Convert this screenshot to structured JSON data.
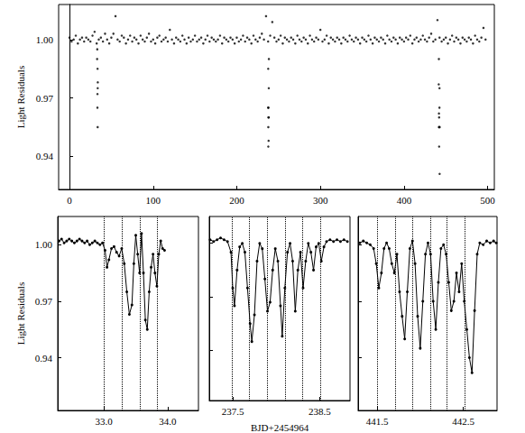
{
  "chart_data": [
    {
      "type": "scatter",
      "color": "#000000",
      "marker": "circle",
      "grid": false,
      "ylabel": "Light Residuals",
      "xlim": [
        -13,
        508
      ],
      "ylim": [
        0.923,
        1.018
      ],
      "xticks": [
        0,
        100,
        200,
        300,
        400,
        500
      ],
      "yticks": [
        0.94,
        0.97,
        {
          "value": 1,
          "label": "1.00"
        }
      ],
      "x": [
        0,
        2.5,
        5,
        7.5,
        10,
        12.5,
        15,
        17.5,
        20,
        22.5,
        25,
        27.5,
        30,
        32.5,
        35,
        37.5,
        40,
        42.5,
        45,
        47.5,
        50,
        52.5,
        55,
        57.5,
        60,
        62.5,
        65,
        67.5,
        70,
        72.5,
        75,
        77.5,
        80,
        82.5,
        85,
        87.5,
        90,
        92.5,
        95,
        97.5,
        100,
        102.5,
        105,
        107.5,
        110,
        112.5,
        115,
        117.5,
        120,
        122.5,
        125,
        127.5,
        130,
        132.5,
        135,
        137.5,
        140,
        142.5,
        145,
        147.5,
        150,
        152.5,
        155,
        157.5,
        160,
        162.5,
        165,
        167.5,
        170,
        172.5,
        175,
        177.5,
        180,
        182.5,
        185,
        187.5,
        190,
        192.5,
        195,
        197.5,
        200,
        202.5,
        205,
        207.5,
        210,
        212.5,
        215,
        217.5,
        220,
        222.5,
        225,
        227.5,
        230,
        232.5,
        235,
        237.5,
        240,
        242.5,
        245,
        247.5,
        250,
        252.5,
        255,
        257.5,
        260,
        262.5,
        265,
        267.5,
        270,
        272.5,
        275,
        277.5,
        280,
        282.5,
        285,
        287.5,
        290,
        292.5,
        295,
        297.5,
        300,
        302.5,
        305,
        307.5,
        310,
        312.5,
        315,
        317.5,
        320,
        322.5,
        325,
        327.5,
        330,
        332.5,
        335,
        337.5,
        340,
        342.5,
        345,
        347.5,
        350,
        352.5,
        355,
        357.5,
        360,
        362.5,
        365,
        367.5,
        370,
        372.5,
        375,
        377.5,
        380,
        382.5,
        385,
        387.5,
        390,
        392.5,
        395,
        397.5,
        400,
        402.5,
        405,
        407.5,
        410,
        412.5,
        415,
        417.5,
        420,
        422.5,
        425,
        427.5,
        430,
        432.5,
        435,
        437.5,
        440,
        442.5,
        445,
        447.5,
        450,
        452.5,
        455,
        457.5,
        460,
        462.5,
        465,
        467.5,
        470,
        472.5,
        475,
        477.5,
        480,
        482.5,
        485,
        487.5,
        490,
        492.5,
        495,
        497.5,
        33.05,
        33.2,
        33.4,
        33.45,
        33.55,
        33.67,
        33.72,
        33.83,
        237.52,
        237.6,
        237.72,
        237.75,
        237.9,
        237.93,
        238.07,
        238.22,
        238.3,
        238.42,
        441.52,
        441.7,
        441.78,
        441.82,
        441.98,
        442.0,
        442.18,
        442.38,
        442.45,
        442.55,
        442.6
      ],
      "values": [
        1.001,
        0.999,
        1.0,
        1.002,
        0.998,
        1.0,
        1.001,
        0.999,
        1.001,
        1.0,
        0.999,
        1.002,
        1.004,
        0.998,
        1.0,
        1.001,
        0.999,
        1.003,
        1.0,
        0.998,
        1.001,
        1.003,
        1.012,
        1.0,
        0.999,
        1.002,
        1.001,
        0.998,
        1.0,
        1.002,
        0.999,
        1.001,
        1.0,
        0.998,
        1.002,
        1.0,
        0.999,
        1.001,
        1.003,
        0.999,
        1.0,
        0.998,
        1.001,
        1.002,
        0.999,
        1.0,
        1.001,
        0.999,
        1.005,
        1.0,
        0.998,
        1.001,
        1.0,
        0.999,
        1.002,
        1.0,
        0.998,
        1.001,
        0.999,
        1.0,
        1.002,
        0.999,
        1.0,
        1.001,
        0.998,
        1.0,
        1.002,
        0.999,
        1.001,
        1.0,
        0.999,
        1.0,
        1.002,
        0.998,
        1.001,
        1.0,
        0.999,
        1.001,
        1.0,
        0.998,
        1.001,
        0.999,
        1.0,
        1.002,
        0.999,
        1.001,
        1.0,
        0.998,
        1.002,
        1.0,
        0.999,
        1.001,
        1.003,
        1.0,
        1.012,
        0.999,
        1.002,
        1.009,
        1.001,
        0.999,
        1.0,
        1.002,
        0.998,
        1.001,
        1.0,
        0.999,
        1.001,
        1.0,
        0.998,
        1.002,
        1.0,
        0.999,
        1.001,
        1.0,
        0.998,
        1.002,
        1.0,
        0.999,
        1.001,
        1.0,
        1.005,
        0.999,
        1.0,
        1.002,
        0.998,
        1.001,
        1.0,
        0.999,
        1.001,
        1.0,
        0.998,
        1.001,
        1.0,
        0.999,
        1.002,
        1.0,
        0.999,
        1.001,
        1.0,
        0.998,
        1.001,
        1.0,
        0.999,
        1.002,
        1.0,
        0.998,
        1.001,
        1.0,
        0.999,
        1.001,
        1.0,
        0.998,
        1.002,
        1.0,
        0.999,
        1.001,
        1.0,
        0.998,
        1.001,
        1.0,
        0.999,
        1.001,
        1.0,
        1.002,
        0.998,
        1.0,
        1.001,
        0.999,
        1.0,
        1.002,
        1.0,
        0.999,
        1.001,
        1.003,
        0.999,
        1.0,
        1.01,
        1.001,
        0.999,
        1.0,
        1.001,
        0.998,
        1.0,
        1.002,
        0.999,
        1.001,
        1.0,
        0.998,
        1.001,
        1.0,
        0.999,
        1.001,
        1.0,
        0.998,
        1.002,
        1.0,
        0.999,
        1.001,
        1.006,
        1.0,
        0.99,
        0.995,
        0.965,
        0.972,
        0.985,
        0.955,
        0.975,
        0.978,
        0.965,
        0.985,
        0.945,
        0.955,
        0.96,
        0.965,
        0.948,
        0.96,
        0.975,
        0.99,
        0.977,
        0.99,
        0.962,
        0.955,
        0.96,
        0.945,
        0.955,
        0.965,
        0.975,
        0.955,
        0.931
      ]
    },
    {
      "type": "line",
      "color": "#000000",
      "marker": "circle",
      "grid": false,
      "ylabel": "Light Residuals",
      "xlim": [
        32.28,
        34.48
      ],
      "ylim": [
        0.912,
        1.015
      ],
      "xticks": [
        {
          "value": 33,
          "label": "33.0"
        },
        {
          "value": 34,
          "label": "34.0"
        }
      ],
      "yticks": [
        0.94,
        0.97,
        {
          "value": 1,
          "label": "1.00"
        }
      ],
      "vlines": [
        33.0,
        33.28,
        33.56,
        33.83
      ],
      "x": [
        32.3,
        32.34,
        32.38,
        32.42,
        32.46,
        32.5,
        32.54,
        32.58,
        32.62,
        32.66,
        32.7,
        32.74,
        32.78,
        32.82,
        32.86,
        32.9,
        32.94,
        32.98,
        33.02,
        33.05,
        33.08,
        33.12,
        33.16,
        33.2,
        33.24,
        33.28,
        33.32,
        33.36,
        33.4,
        33.44,
        33.47,
        33.5,
        33.53,
        33.56,
        33.59,
        33.62,
        33.65,
        33.68,
        33.71,
        33.74,
        33.77,
        33.8,
        33.83,
        33.86,
        33.89,
        33.92,
        33.95
      ],
      "values": [
        1.002,
        1.003,
        1.001,
        1.002,
        1.003,
        1.002,
        1.001,
        1.002,
        1.003,
        1.002,
        1.001,
        1.002,
        1.0,
        1.001,
        1.002,
        1.001,
        1.0,
        1.001,
        0.997,
        0.988,
        0.992,
        0.998,
        0.999,
        0.996,
        0.994,
        0.998,
        0.99,
        0.975,
        0.963,
        0.968,
        0.99,
        1.005,
        0.995,
        0.985,
        1.006,
        0.985,
        0.96,
        0.955,
        0.975,
        0.988,
        0.995,
        0.985,
        0.978,
        0.995,
        1.002,
        0.998,
        0.997
      ]
    },
    {
      "type": "line",
      "color": "#000000",
      "marker": "circle",
      "grid": false,
      "tick_labels": "x",
      "xlabel": "BJD+2454964",
      "xlim": [
        237.23,
        238.85
      ],
      "ylim": [
        0.912,
        1.015
      ],
      "xticks": [
        237.5,
        238.5
      ],
      "yticks": [
        0.94,
        0.97,
        {
          "value": 1,
          "label": "1.00"
        }
      ],
      "vlines": [
        237.49,
        237.69,
        237.9,
        238.1,
        238.3,
        238.51
      ],
      "x": [
        237.24,
        237.28,
        237.32,
        237.36,
        237.4,
        237.44,
        237.48,
        237.5,
        237.52,
        237.55,
        237.58,
        237.61,
        237.64,
        237.67,
        237.7,
        237.72,
        237.75,
        237.78,
        237.81,
        237.84,
        237.87,
        237.9,
        237.93,
        237.96,
        237.99,
        238.02,
        238.05,
        238.07,
        238.1,
        238.13,
        238.16,
        238.19,
        238.22,
        238.25,
        238.28,
        238.31,
        238.34,
        238.37,
        238.4,
        238.43,
        238.46,
        238.49,
        238.52,
        238.55,
        238.58,
        238.62,
        238.66,
        238.7,
        238.74,
        238.78,
        238.82
      ],
      "values": [
        1.002,
        1.001,
        1.002,
        1.003,
        1.002,
        1.001,
        0.995,
        0.975,
        0.965,
        0.985,
        0.998,
        1.0,
        0.995,
        0.975,
        0.955,
        0.945,
        0.96,
        0.99,
        1.0,
        0.997,
        0.98,
        0.962,
        0.967,
        0.985,
        0.997,
        0.99,
        0.965,
        0.948,
        0.975,
        0.995,
        1.0,
        0.99,
        0.962,
        0.985,
        0.995,
        0.975,
        0.99,
        1.0,
        0.995,
        0.985,
        0.998,
        1.0,
        0.99,
        0.998,
        1.001,
        1.002,
        1.001,
        1.002,
        1.001,
        1.002,
        1.001
      ]
    },
    {
      "type": "line",
      "color": "#000000",
      "marker": "circle",
      "grid": false,
      "tick_labels": "x",
      "xlim": [
        441.28,
        442.89
      ],
      "ylim": [
        0.912,
        1.015
      ],
      "xticks": [
        441.5,
        442.5
      ],
      "yticks": [
        0.94,
        0.97,
        {
          "value": 1,
          "label": "1.00"
        }
      ],
      "vlines": [
        441.5,
        441.71,
        441.91,
        442.12,
        442.31,
        442.52
      ],
      "x": [
        441.3,
        441.34,
        441.38,
        441.42,
        441.46,
        441.49,
        441.52,
        441.55,
        441.58,
        441.61,
        441.64,
        441.67,
        441.7,
        441.73,
        441.76,
        441.79,
        441.82,
        441.85,
        441.88,
        441.91,
        441.94,
        441.97,
        442.0,
        442.03,
        442.06,
        442.09,
        442.12,
        442.15,
        442.18,
        442.21,
        442.24,
        442.27,
        442.3,
        442.33,
        442.36,
        442.39,
        442.42,
        442.45,
        442.48,
        442.51,
        442.54,
        442.57,
        442.6,
        442.63,
        442.66,
        442.69,
        442.73,
        442.77,
        442.81,
        442.85,
        442.88
      ],
      "values": [
        1.001,
        1.002,
        1.001,
        1.0,
        0.998,
        0.99,
        0.977,
        0.985,
        0.998,
        1.001,
        0.998,
        0.99,
        0.985,
        0.995,
        0.975,
        0.962,
        0.95,
        0.975,
        0.998,
        1.002,
        0.99,
        0.962,
        0.945,
        0.97,
        0.995,
        1.001,
        0.995,
        0.97,
        0.955,
        0.98,
        0.998,
        1.0,
        0.995,
        0.98,
        0.965,
        0.97,
        0.985,
        0.975,
        0.99,
        0.97,
        0.955,
        0.94,
        0.932,
        0.965,
        0.995,
        1.001,
        1.0,
        1.002,
        1.001,
        1.002,
        1.001
      ]
    }
  ]
}
